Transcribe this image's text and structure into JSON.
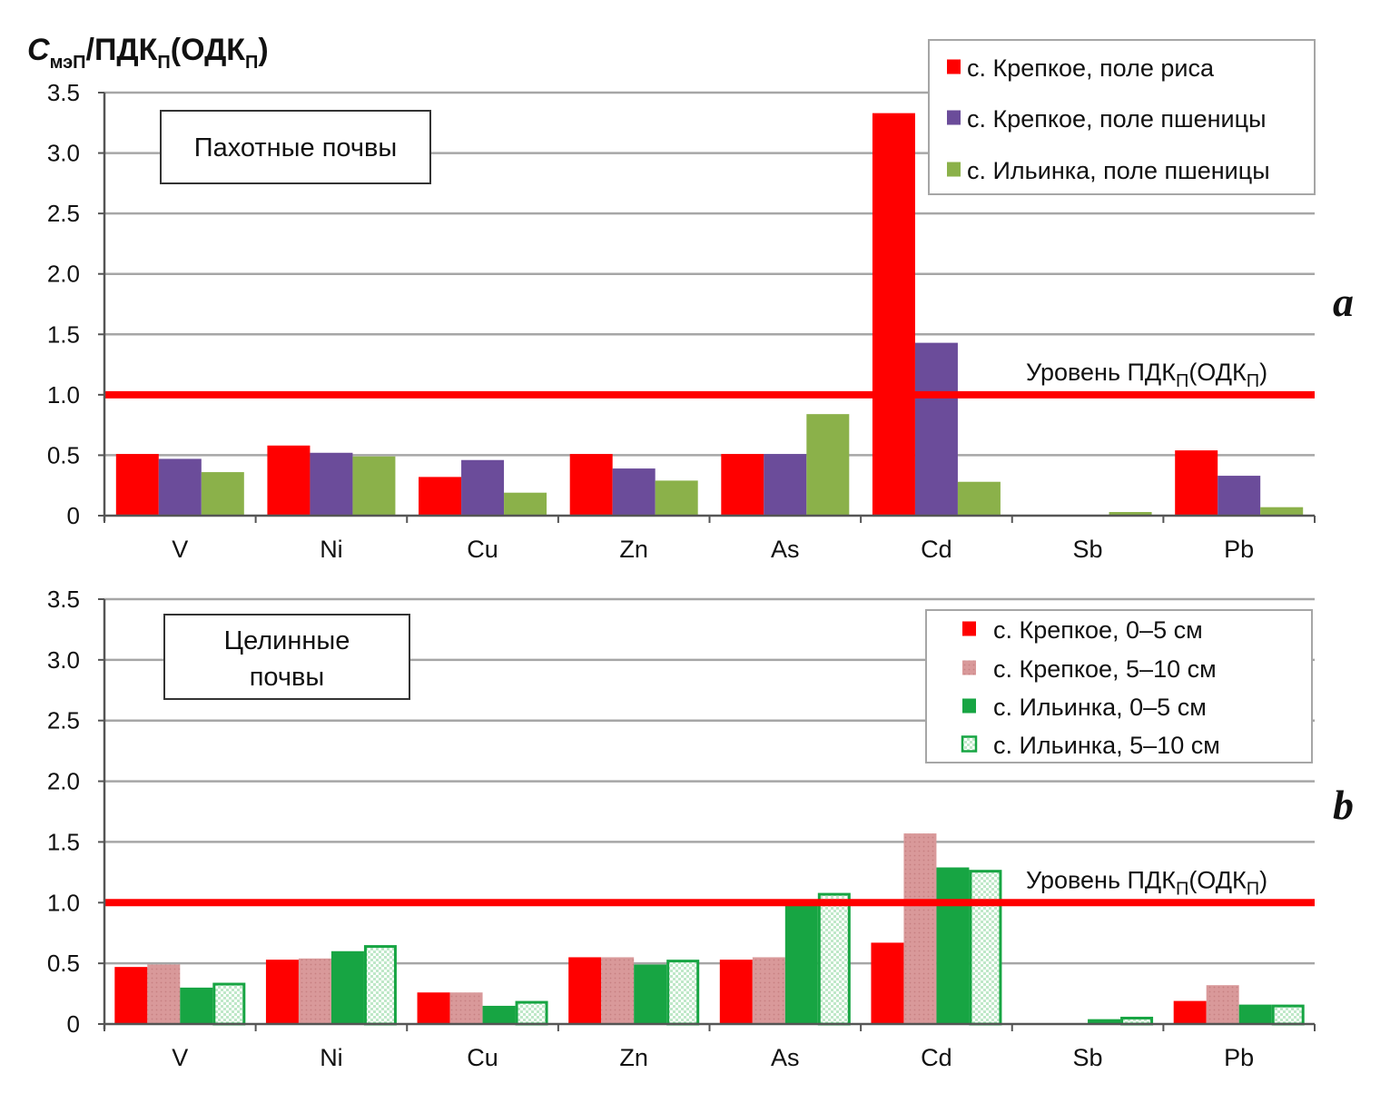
{
  "y_axis_label": {
    "main": "С",
    "sub1": "мэП",
    "mid": "/ПДК",
    "sub2": "П",
    "mid2": "(ОДК",
    "sub3": "П",
    "end": ")"
  },
  "ref_line_label": {
    "main": "Уровень ПДК",
    "sub1": "П",
    "mid": "(ОДК",
    "sub2": "П",
    "end": ")"
  },
  "colors": {
    "red": "#ff0000",
    "purple": "#6b4c9a",
    "olive_green": "#8bb14a",
    "pink": "#d9999a",
    "green": "#17a543",
    "light_green": "#e7f6e7",
    "ref_line": "#ff0000",
    "grid": "#a6a6a6"
  },
  "chart_data": [
    {
      "type": "bar",
      "panel_letter": "a",
      "title": "Пахотные почвы",
      "ylim": [
        0,
        3.5
      ],
      "yticks": [
        "0",
        "0.5",
        "1.0",
        "1.5",
        "2.0",
        "2.5",
        "3.0",
        "3.5"
      ],
      "ytick_values": [
        0,
        0.5,
        1.0,
        1.5,
        2.0,
        2.5,
        3.0,
        3.5
      ],
      "categories": [
        "V",
        "Ni",
        "Cu",
        "Zn",
        "As",
        "Cd",
        "Sb",
        "Pb"
      ],
      "reference_line": 1.0,
      "legend_position": "top-right",
      "series": [
        {
          "name": "с. Крепкое, поле риса",
          "color_key": "red",
          "values": [
            0.51,
            0.58,
            0.32,
            0.51,
            0.51,
            3.33,
            0,
            0.54
          ]
        },
        {
          "name": "с. Крепкое, поле пшеницы",
          "color_key": "purple",
          "values": [
            0.47,
            0.52,
            0.46,
            0.39,
            0.51,
            1.43,
            0,
            0.33
          ]
        },
        {
          "name": "с. Ильинка, поле пшеницы",
          "color_key": "olive_green",
          "values": [
            0.36,
            0.49,
            0.19,
            0.29,
            0.84,
            0.28,
            0.03,
            0.07
          ]
        }
      ]
    },
    {
      "type": "bar",
      "panel_letter": "b",
      "title_lines": [
        "Целинные",
        "почвы"
      ],
      "ylim": [
        0,
        3.5
      ],
      "yticks": [
        "0",
        "0.5",
        "1.0",
        "1.5",
        "2.0",
        "2.5",
        "3.0",
        "3.5"
      ],
      "ytick_values": [
        0,
        0.5,
        1.0,
        1.5,
        2.0,
        2.5,
        3.0,
        3.5
      ],
      "categories": [
        "V",
        "Ni",
        "Cu",
        "Zn",
        "As",
        "Cd",
        "Sb",
        "Pb"
      ],
      "reference_line": 1.0,
      "legend_position": "top-right",
      "series": [
        {
          "name": "с. Крепкое, 0–5 см",
          "color_key": "red",
          "values": [
            0.47,
            0.53,
            0.26,
            0.55,
            0.53,
            0.67,
            0,
            0.19
          ]
        },
        {
          "name": "с. Крепкое, 5–10 см",
          "color_key": "pink",
          "values": [
            0.49,
            0.54,
            0.26,
            0.55,
            0.55,
            1.57,
            0,
            0.32
          ]
        },
        {
          "name": "с. Ильинка, 0–5 см",
          "color_key": "green",
          "values": [
            0.3,
            0.6,
            0.15,
            0.49,
            1.0,
            1.29,
            0.04,
            0.16
          ]
        },
        {
          "name": "с. Ильинка, 5–10 см",
          "color_key": "light_green",
          "values": [
            0.34,
            0.65,
            0.19,
            0.53,
            1.08,
            1.27,
            0.06,
            0.16
          ]
        }
      ]
    }
  ]
}
